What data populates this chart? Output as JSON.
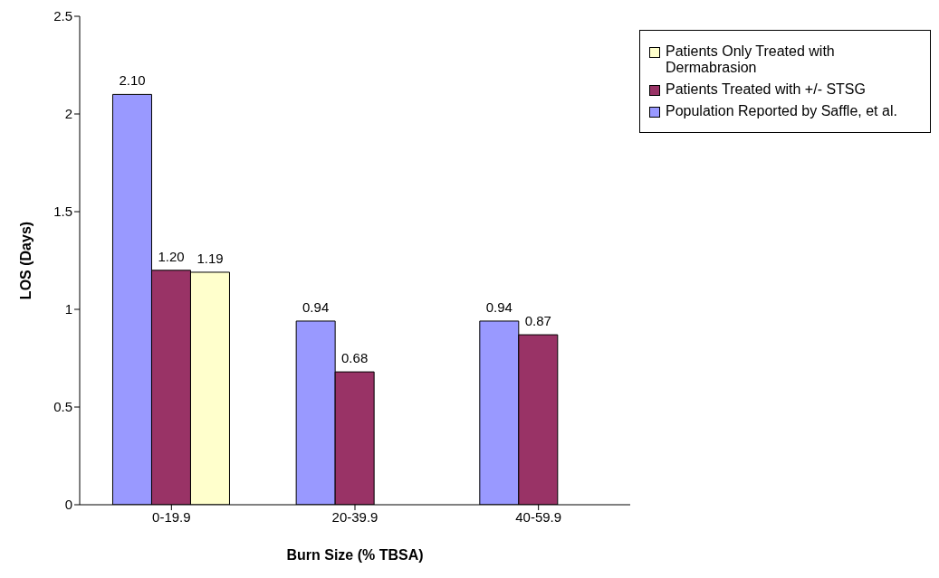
{
  "chart_data": {
    "type": "bar",
    "xlabel": "Burn Size (% TBSA)",
    "ylabel": "LOS (Days)",
    "categories": [
      "0-19.9",
      "20-39.9",
      "40-59.9"
    ],
    "series": [
      {
        "name": "Population Reported by Saffle, et al.",
        "color": "#9999ff",
        "values": [
          2.1,
          0.94,
          0.94
        ],
        "value_labels": [
          "2.10",
          "0.94",
          "0.94"
        ]
      },
      {
        "name": "Patients Treated with +/- STSG",
        "color": "#993366",
        "values": [
          1.2,
          0.68,
          0.87
        ],
        "value_labels": [
          "1.20",
          "0.68",
          "0.87"
        ]
      },
      {
        "name": "Patients Only Treated with Dermabrasion",
        "color": "#ffffcc",
        "values": [
          1.19,
          null,
          null
        ],
        "value_labels": [
          "1.19",
          null,
          null
        ]
      }
    ],
    "ylim": [
      0,
      2.5
    ],
    "yticks": [
      0,
      0.5,
      1,
      1.5,
      2,
      2.5
    ],
    "grid": false,
    "legend": "top right"
  }
}
